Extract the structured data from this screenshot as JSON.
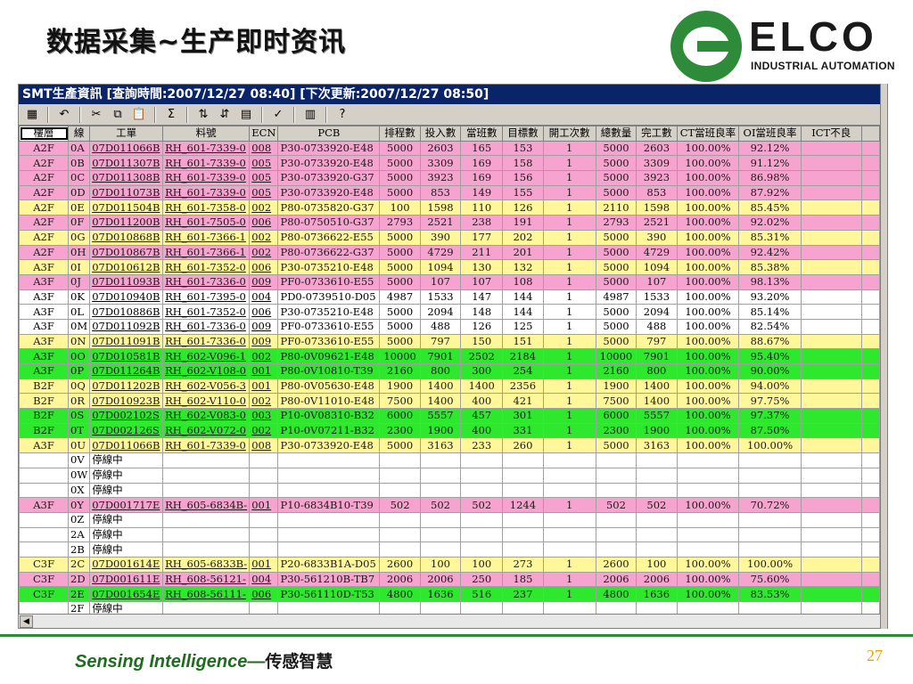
{
  "slide": {
    "title": "数据采集~生产即时资讯",
    "footer_en": "Sensing  Intelligence—",
    "footer_cn": "传感智慧",
    "page_number": "27"
  },
  "logo": {
    "name": "ELCO",
    "subtitle": "INDUSTRIAL AUTOMATION"
  },
  "window": {
    "title": "SMT生產資訊 [查詢時間:2007/12/27 08:40] [下次更新:2007/12/27 08:50]"
  },
  "toolbar": [
    {
      "icon": "chart-icon",
      "glyph": "▦"
    },
    {
      "icon": "undo-icon",
      "glyph": "↶"
    },
    {
      "icon": "cut-icon",
      "glyph": "✂"
    },
    {
      "icon": "copy-icon",
      "glyph": "⧉"
    },
    {
      "icon": "paste-icon",
      "glyph": "📋"
    },
    {
      "icon": "sum-icon",
      "glyph": "Σ"
    },
    {
      "icon": "sort-ascending-icon",
      "glyph": "⇅"
    },
    {
      "icon": "sort-descending-icon",
      "glyph": "⇵"
    },
    {
      "icon": "filter-icon",
      "glyph": "▤"
    },
    {
      "icon": "spellcheck-icon",
      "glyph": "✓"
    },
    {
      "icon": "export-icon",
      "glyph": "▥"
    },
    {
      "icon": "help-icon",
      "glyph": "?"
    }
  ],
  "columns": [
    "樓層",
    "線",
    "工單",
    "料號",
    "ECN",
    "PCB",
    "排程數",
    "投入數",
    "當班數",
    "目標數",
    "開工次數",
    "總數量",
    "完工數",
    "CT當班良率",
    "OI當班良率",
    "ICT不良"
  ],
  "rows": [
    {
      "color": "pink",
      "cells": [
        "A2F",
        "0A",
        "07D011066B",
        "RH_601-7339-0",
        "008",
        "P30-0733920-E48",
        "5000",
        "2603",
        "165",
        "153",
        "1",
        "5000",
        "2603",
        "100.00%",
        "92.12%",
        ""
      ]
    },
    {
      "color": "pink",
      "cells": [
        "A2F",
        "0B",
        "07D011307B",
        "RH_601-7339-0",
        "005",
        "P30-0733920-E48",
        "5000",
        "3309",
        "169",
        "158",
        "1",
        "5000",
        "3309",
        "100.00%",
        "91.12%",
        ""
      ]
    },
    {
      "color": "pink",
      "cells": [
        "A2F",
        "0C",
        "07D011308B",
        "RH_601-7339-0",
        "005",
        "P30-0733920-G37",
        "5000",
        "3923",
        "169",
        "156",
        "1",
        "5000",
        "3923",
        "100.00%",
        "86.98%",
        ""
      ]
    },
    {
      "color": "pink",
      "cells": [
        "A2F",
        "0D",
        "07D011073B",
        "RH_601-7339-0",
        "005",
        "P30-0733920-E48",
        "5000",
        "853",
        "149",
        "155",
        "1",
        "5000",
        "853",
        "100.00%",
        "87.92%",
        ""
      ]
    },
    {
      "color": "yellow",
      "cells": [
        "A2F",
        "0E",
        "07D011504B",
        "RH_601-7358-0",
        "002",
        "P80-0735820-G37",
        "100",
        "1598",
        "110",
        "126",
        "1",
        "2110",
        "1598",
        "100.00%",
        "85.45%",
        ""
      ]
    },
    {
      "color": "pink",
      "cells": [
        "A2F",
        "0F",
        "07D011200B",
        "RH_601-7505-0",
        "006",
        "P80-0750510-G37",
        "2793",
        "2521",
        "238",
        "191",
        "1",
        "2793",
        "2521",
        "100.00%",
        "92.02%",
        ""
      ]
    },
    {
      "color": "yellow",
      "cells": [
        "A2F",
        "0G",
        "07D010868B",
        "RH_601-7366-1",
        "002",
        "P80-0736622-E55",
        "5000",
        "390",
        "177",
        "202",
        "1",
        "5000",
        "390",
        "100.00%",
        "85.31%",
        ""
      ]
    },
    {
      "color": "pink",
      "cells": [
        "A2F",
        "0H",
        "07D010867B",
        "RH_601-7366-1",
        "002",
        "P80-0736622-G37",
        "5000",
        "4729",
        "211",
        "201",
        "1",
        "5000",
        "4729",
        "100.00%",
        "92.42%",
        ""
      ]
    },
    {
      "color": "yellow",
      "cells": [
        "A3F",
        "0I",
        "07D010612B",
        "RH_601-7352-0",
        "006",
        "P30-0735210-E48",
        "5000",
        "1094",
        "130",
        "132",
        "1",
        "5000",
        "1094",
        "100.00%",
        "85.38%",
        ""
      ]
    },
    {
      "color": "pink",
      "cells": [
        "A3F",
        "0J",
        "07D011093B",
        "RH_601-7336-0",
        "009",
        "PF0-0733610-E55",
        "5000",
        "107",
        "107",
        "108",
        "1",
        "5000",
        "107",
        "100.00%",
        "98.13%",
        ""
      ]
    },
    {
      "color": "white",
      "cells": [
        "A3F",
        "0K",
        "07D010940B",
        "RH_601-7395-0",
        "004",
        "PD0-0739510-D05",
        "4987",
        "1533",
        "147",
        "144",
        "1",
        "4987",
        "1533",
        "100.00%",
        "93.20%",
        ""
      ]
    },
    {
      "color": "white",
      "cells": [
        "A3F",
        "0L",
        "07D010886B",
        "RH_601-7352-0",
        "006",
        "P30-0735210-E48",
        "5000",
        "2094",
        "148",
        "144",
        "1",
        "5000",
        "2094",
        "100.00%",
        "85.14%",
        ""
      ]
    },
    {
      "color": "white",
      "cells": [
        "A3F",
        "0M",
        "07D011092B",
        "RH_601-7336-0",
        "009",
        "PF0-0733610-E55",
        "5000",
        "488",
        "126",
        "125",
        "1",
        "5000",
        "488",
        "100.00%",
        "82.54%",
        ""
      ]
    },
    {
      "color": "yellow",
      "cells": [
        "A3F",
        "0N",
        "07D011091B",
        "RH_601-7336-0",
        "009",
        "PF0-0733610-E55",
        "5000",
        "797",
        "150",
        "151",
        "1",
        "5000",
        "797",
        "100.00%",
        "88.67%",
        ""
      ]
    },
    {
      "color": "green",
      "cells": [
        "A3F",
        "0O",
        "07D010581B",
        "RH_602-V096-1",
        "002",
        "P80-0V09621-E48",
        "10000",
        "7901",
        "2502",
        "2184",
        "1",
        "10000",
        "7901",
        "100.00%",
        "95.40%",
        ""
      ]
    },
    {
      "color": "green",
      "cells": [
        "A3F",
        "0P",
        "07D011264B",
        "RH_602-V108-0",
        "001",
        "P80-0V10810-T39",
        "2160",
        "800",
        "300",
        "254",
        "1",
        "2160",
        "800",
        "100.00%",
        "90.00%",
        ""
      ]
    },
    {
      "color": "yellow",
      "cells": [
        "B2F",
        "0Q",
        "07D011202B",
        "RH_602-V056-3",
        "001",
        "P80-0V05630-E48",
        "1900",
        "1400",
        "1400",
        "2356",
        "1",
        "1900",
        "1400",
        "100.00%",
        "94.00%",
        ""
      ]
    },
    {
      "color": "yellow",
      "cells": [
        "B2F",
        "0R",
        "07D010923B",
        "RH_602-V110-0",
        "002",
        "P80-0V11010-E48",
        "7500",
        "1400",
        "400",
        "421",
        "1",
        "7500",
        "1400",
        "100.00%",
        "97.75%",
        ""
      ]
    },
    {
      "color": "green",
      "cells": [
        "B2F",
        "0S",
        "07D002102S",
        "RH_602-V083-0",
        "003",
        "P10-0V08310-B32",
        "6000",
        "5557",
        "457",
        "301",
        "1",
        "6000",
        "5557",
        "100.00%",
        "97.37%",
        ""
      ]
    },
    {
      "color": "green",
      "cells": [
        "B2F",
        "0T",
        "07D002126S",
        "RH_602-V072-0",
        "002",
        "P10-0V07211-B32",
        "2300",
        "1900",
        "400",
        "331",
        "1",
        "2300",
        "1900",
        "100.00%",
        "87.50%",
        ""
      ]
    },
    {
      "color": "yellow",
      "cells": [
        "A3F",
        "0U",
        "07D011066B",
        "RH_601-7339-0",
        "008",
        "P30-0733920-E48",
        "5000",
        "3163",
        "233",
        "260",
        "1",
        "5000",
        "3163",
        "100.00%",
        "100.00%",
        ""
      ]
    },
    {
      "color": "stopped",
      "cells": [
        "",
        "0V",
        "停線中",
        "",
        "",
        "",
        "",
        "",
        "",
        "",
        "",
        "",
        "",
        "",
        "",
        ""
      ]
    },
    {
      "color": "stopped",
      "cells": [
        "",
        "0W",
        "停線中",
        "",
        "",
        "",
        "",
        "",
        "",
        "",
        "",
        "",
        "",
        "",
        "",
        ""
      ]
    },
    {
      "color": "stopped",
      "cells": [
        "",
        "0X",
        "停線中",
        "",
        "",
        "",
        "",
        "",
        "",
        "",
        "",
        "",
        "",
        "",
        "",
        ""
      ]
    },
    {
      "color": "pink",
      "cells": [
        "A3F",
        "0Y",
        "07D001717E",
        "RH_605-6834B-",
        "001",
        "P10-6834B10-T39",
        "502",
        "502",
        "502",
        "1244",
        "1",
        "502",
        "502",
        "100.00%",
        "70.72%",
        ""
      ]
    },
    {
      "color": "stopped",
      "cells": [
        "",
        "0Z",
        "停線中",
        "",
        "",
        "",
        "",
        "",
        "",
        "",
        "",
        "",
        "",
        "",
        "",
        ""
      ]
    },
    {
      "color": "stopped",
      "cells": [
        "",
        "2A",
        "停線中",
        "",
        "",
        "",
        "",
        "",
        "",
        "",
        "",
        "",
        "",
        "",
        "",
        ""
      ]
    },
    {
      "color": "stopped",
      "cells": [
        "",
        "2B",
        "停線中",
        "",
        "",
        "",
        "",
        "",
        "",
        "",
        "",
        "",
        "",
        "",
        "",
        ""
      ]
    },
    {
      "color": "yellow",
      "cells": [
        "C3F",
        "2C",
        "07D001614E",
        "RH_605-6833B-",
        "001",
        "P20-6833B1A-D05",
        "2600",
        "100",
        "100",
        "273",
        "1",
        "2600",
        "100",
        "100.00%",
        "100.00%",
        ""
      ]
    },
    {
      "color": "pink",
      "cells": [
        "C3F",
        "2D",
        "07D001611E",
        "RH_608-56121-",
        "004",
        "P30-561210B-TB7",
        "2006",
        "2006",
        "250",
        "185",
        "1",
        "2006",
        "2006",
        "100.00%",
        "75.60%",
        ""
      ]
    },
    {
      "color": "green",
      "cells": [
        "C3F",
        "2E",
        "07D001654E",
        "RH_608-56111-",
        "006",
        "P30-561110D-T53",
        "4800",
        "1636",
        "516",
        "237",
        "1",
        "4800",
        "1636",
        "100.00%",
        "83.53%",
        ""
      ]
    },
    {
      "color": "stopped",
      "cells": [
        "",
        "2F",
        "停線中",
        "",
        "",
        "",
        "",
        "",
        "",
        "",
        "",
        "",
        "",
        "",
        "",
        ""
      ]
    }
  ],
  "colors": {
    "pink": "#f7a3cf",
    "yellow": "#fff79a",
    "green": "#2ee82e",
    "brand_green": "#2e8b3a",
    "titlebar": "#0a246a"
  }
}
